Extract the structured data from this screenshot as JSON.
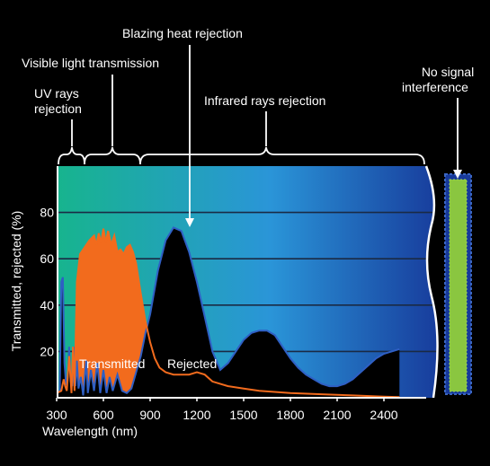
{
  "chart_data": {
    "type": "area",
    "xlabel": "Wavelength (nm)",
    "ylabel": "Transmitted, rejected (%)",
    "xlim": [
      300,
      2500
    ],
    "ylim": [
      0,
      100
    ],
    "x_ticks": [
      300,
      600,
      900,
      1200,
      1500,
      1800,
      2100,
      2400
    ],
    "y_ticks": [
      20,
      40,
      60,
      80
    ],
    "grid": true,
    "series": [
      {
        "name": "Transmitted",
        "color": "#f26b1d",
        "points": [
          [
            300,
            2
          ],
          [
            330,
            3
          ],
          [
            345,
            8
          ],
          [
            355,
            5
          ],
          [
            365,
            3
          ],
          [
            380,
            18
          ],
          [
            395,
            2
          ],
          [
            405,
            22
          ],
          [
            415,
            3
          ],
          [
            430,
            50
          ],
          [
            450,
            62
          ],
          [
            480,
            65
          ],
          [
            510,
            68
          ],
          [
            540,
            70
          ],
          [
            555,
            66
          ],
          [
            570,
            71
          ],
          [
            585,
            67
          ],
          [
            600,
            73
          ],
          [
            615,
            67
          ],
          [
            630,
            72
          ],
          [
            650,
            66
          ],
          [
            670,
            70
          ],
          [
            690,
            63
          ],
          [
            710,
            64
          ],
          [
            730,
            62
          ],
          [
            750,
            65
          ],
          [
            770,
            66
          ],
          [
            790,
            63
          ],
          [
            810,
            58
          ],
          [
            840,
            45
          ],
          [
            870,
            33
          ],
          [
            900,
            24
          ],
          [
            930,
            17
          ],
          [
            960,
            13
          ],
          [
            1000,
            11
          ],
          [
            1050,
            10
          ],
          [
            1100,
            10
          ],
          [
            1150,
            10
          ],
          [
            1200,
            11
          ],
          [
            1250,
            10
          ],
          [
            1300,
            7
          ],
          [
            1400,
            5
          ],
          [
            1500,
            4
          ],
          [
            1600,
            3
          ],
          [
            1800,
            2
          ],
          [
            2000,
            1.5
          ],
          [
            2200,
            1
          ],
          [
            2400,
            0.5
          ],
          [
            2500,
            0.3
          ]
        ]
      },
      {
        "name": "Rejected",
        "color": "#000000",
        "points": [
          [
            300,
            2
          ],
          [
            320,
            3
          ],
          [
            330,
            50
          ],
          [
            340,
            52
          ],
          [
            350,
            15
          ],
          [
            360,
            6
          ],
          [
            370,
            7
          ],
          [
            380,
            22
          ],
          [
            390,
            7
          ],
          [
            400,
            5
          ],
          [
            410,
            22
          ],
          [
            420,
            5
          ],
          [
            430,
            16
          ],
          [
            440,
            4
          ],
          [
            455,
            9
          ],
          [
            470,
            1
          ],
          [
            490,
            16
          ],
          [
            500,
            2
          ],
          [
            520,
            12
          ],
          [
            540,
            3
          ],
          [
            560,
            15
          ],
          [
            580,
            2
          ],
          [
            600,
            12
          ],
          [
            620,
            2
          ],
          [
            640,
            9
          ],
          [
            660,
            3
          ],
          [
            690,
            10
          ],
          [
            720,
            3
          ],
          [
            750,
            2
          ],
          [
            780,
            4
          ],
          [
            810,
            11
          ],
          [
            840,
            18
          ],
          [
            870,
            28
          ],
          [
            900,
            36
          ],
          [
            950,
            55
          ],
          [
            1000,
            68
          ],
          [
            1050,
            73.5
          ],
          [
            1100,
            72
          ],
          [
            1150,
            63
          ],
          [
            1200,
            50
          ],
          [
            1250,
            35
          ],
          [
            1300,
            20
          ],
          [
            1350,
            12
          ],
          [
            1400,
            15
          ],
          [
            1450,
            20
          ],
          [
            1500,
            25
          ],
          [
            1550,
            28
          ],
          [
            1600,
            29
          ],
          [
            1650,
            29
          ],
          [
            1700,
            27
          ],
          [
            1750,
            22
          ],
          [
            1800,
            17
          ],
          [
            1850,
            13
          ],
          [
            1900,
            10
          ],
          [
            1950,
            8
          ],
          [
            2000,
            6
          ],
          [
            2050,
            5
          ],
          [
            2100,
            5
          ],
          [
            2150,
            6
          ],
          [
            2200,
            8
          ],
          [
            2250,
            11
          ],
          [
            2300,
            14
          ],
          [
            2350,
            17
          ],
          [
            2400,
            19
          ],
          [
            2500,
            21
          ]
        ]
      }
    ],
    "annotations": {
      "uv": "UV rays rejection",
      "uv_line1": "UV rays",
      "uv_line2": "rejection",
      "visible": "Visible light transmission",
      "heat": "Blazing heat rejection",
      "infrared": "Infrared rays rejection",
      "signal": "No signal interference",
      "signal_line1": "No signal",
      "signal_line2": "interference",
      "transmitted": "Transmitted",
      "rejected": "Rejected"
    },
    "heat_peak_x": 1070,
    "colors": {
      "band_left": "#17b48e",
      "band_mid": "#2a95d8",
      "band_right": "#17399a",
      "signal_bar": "#8ac640",
      "grid": "#1a2a44",
      "transmitted": "#f26b1d",
      "rejected": "#000000"
    }
  }
}
